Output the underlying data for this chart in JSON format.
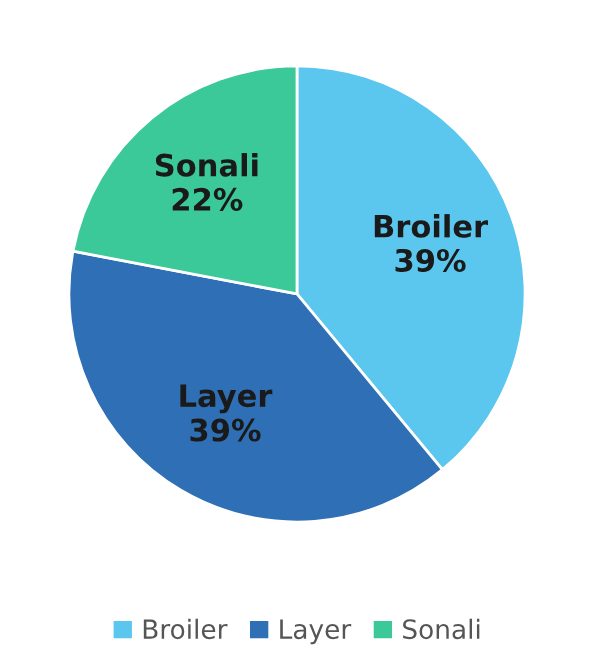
{
  "chart_data": {
    "type": "pie",
    "categories": [
      "Broiler",
      "Layer",
      "Sonali"
    ],
    "values": [
      39,
      39,
      22
    ],
    "colors": [
      "#5bc6ee",
      "#2f6fb5",
      "#3cc99a"
    ],
    "value_labels": [
      "39%",
      "39%",
      "22%"
    ],
    "legend": "bottom"
  }
}
